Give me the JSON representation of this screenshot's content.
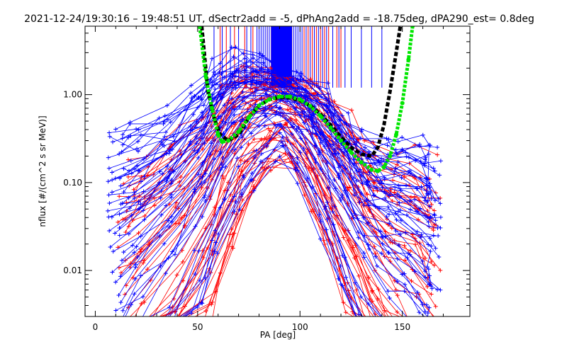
{
  "chart_data": {
    "type": "line",
    "title": "2021-12-24/19:30:16 – 19:48:51 UT, dSectr2add = -5, dPhAng2add = -18.75deg, dPA290_est=   0.8deg",
    "xlabel": "PA [deg]",
    "ylabel": "nflux [#/(cm^2 s sr MeV)]",
    "xlim": [
      -5,
      183
    ],
    "ylim": [
      0.003,
      6
    ],
    "yscale": "log",
    "xticks": [
      0,
      50,
      100,
      150
    ],
    "xticklabels": [
      "0",
      "50",
      "100",
      "150"
    ],
    "yticks": [
      0.01,
      0.1,
      1.0
    ],
    "yticklabels": [
      "0.01",
      "0.10",
      "1.00"
    ],
    "series": [
      {
        "color": "#ff0000",
        "style": "many thin lines with + markers",
        "representative_x": [
          15,
          25,
          40,
          55,
          65,
          75,
          85,
          95,
          105,
          115,
          125,
          135,
          145,
          155,
          165
        ],
        "representative_y": [
          0.012,
          0.02,
          0.05,
          0.15,
          0.4,
          0.75,
          0.9,
          0.85,
          0.6,
          0.3,
          0.12,
          0.05,
          0.03,
          0.02,
          0.012
        ]
      },
      {
        "color": "#0000ff",
        "style": "many thin lines with + markers",
        "representative_x": [
          10,
          20,
          35,
          50,
          60,
          70,
          80,
          90,
          100,
          110,
          120,
          130,
          140,
          150,
          160,
          165
        ],
        "representative_y": [
          0.02,
          0.03,
          0.06,
          0.18,
          0.45,
          0.8,
          0.95,
          0.95,
          0.7,
          0.35,
          0.15,
          0.06,
          0.04,
          0.03,
          0.02,
          0.015
        ]
      },
      {
        "color": "#000000",
        "style": "thick dashed fit",
        "x": [
          52,
          55,
          58,
          61,
          65,
          70,
          75,
          80,
          85,
          90,
          95,
          100,
          105,
          110,
          115,
          120,
          125,
          130,
          135,
          138,
          141,
          144,
          147,
          149
        ],
        "y": [
          6,
          1.1,
          0.55,
          0.35,
          0.3,
          0.35,
          0.55,
          0.75,
          0.88,
          0.93,
          0.92,
          0.86,
          0.75,
          0.6,
          0.45,
          0.33,
          0.25,
          0.21,
          0.2,
          0.25,
          0.45,
          1.1,
          3.0,
          6
        ]
      },
      {
        "color": "#00e600",
        "style": "thick dotted fit",
        "x": [
          51,
          54,
          57,
          60,
          62,
          65,
          70,
          75,
          80,
          85,
          90,
          95,
          100,
          105,
          110,
          115,
          120,
          125,
          130,
          135,
          138,
          141,
          144,
          147,
          150,
          153,
          155
        ],
        "y": [
          6,
          1.6,
          0.7,
          0.35,
          0.29,
          0.3,
          0.38,
          0.55,
          0.75,
          0.88,
          0.95,
          0.95,
          0.88,
          0.74,
          0.57,
          0.42,
          0.3,
          0.22,
          0.17,
          0.14,
          0.135,
          0.15,
          0.2,
          0.35,
          0.8,
          2.5,
          6
        ]
      }
    ],
    "vertical_markers": {
      "y_bottom": 1.2,
      "red_x": [
        61,
        64,
        68,
        73,
        77,
        84,
        86,
        87,
        88,
        89,
        91,
        93,
        96,
        98,
        102,
        104,
        106,
        108,
        110,
        112,
        114,
        118,
        120
      ],
      "blue_x": [
        58,
        62,
        66,
        70,
        74,
        76,
        79,
        80,
        81,
        82,
        83,
        84,
        85,
        86,
        87,
        88,
        89,
        90,
        91,
        92,
        93,
        94,
        95,
        96,
        97,
        98,
        99,
        100,
        101,
        103,
        105,
        107,
        109,
        111,
        113,
        116,
        119,
        122,
        125,
        130,
        135,
        140
      ]
    }
  }
}
